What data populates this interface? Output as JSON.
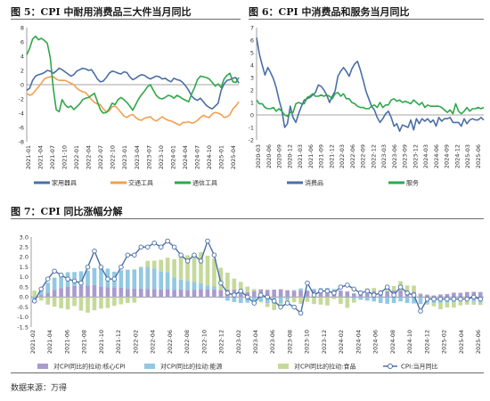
{
  "source": "数据来源：万得",
  "chart_data": [
    {
      "id": "fig5",
      "type": "line",
      "title": "图 5：CPI 中耐用消费品三大件当月同比",
      "ylim": [
        -8,
        8
      ],
      "yticks": [
        8,
        6,
        4,
        2,
        0,
        -2,
        -4,
        -6,
        -8
      ],
      "xlabels": [
        "2021-01",
        "2021-04",
        "2021-07",
        "2021-10",
        "2022-01",
        "2022-04",
        "2022-07",
        "2022-10",
        "2023-01",
        "2023-04",
        "2023-07",
        "2023-10",
        "2024-01",
        "2024-04",
        "2024-07",
        "2024-10",
        "2025-01",
        "2025-04"
      ],
      "grid": false,
      "legend_position": "bottom",
      "colors": {
        "家用器具": "#4a6fa5",
        "交通工具": "#f0a050",
        "通信工具": "#2ea84a"
      },
      "series": [
        {
          "name": "家用器具",
          "values": [
            -0.8,
            -0.5,
            0.6,
            1.2,
            1.4,
            1.5,
            1.7,
            2.0,
            1.9,
            1.6,
            1.9,
            2.3,
            2.1,
            1.8,
            1.5,
            1.2,
            1.4,
            1.9,
            2.1,
            2.3,
            2.2,
            2.0,
            2.1,
            1.5,
            0.8,
            0.4,
            0.5,
            1.0,
            1.6,
            1.9,
            1.8,
            1.6,
            1.5,
            1.8,
            1.7,
            1.1,
            0.7,
            0.9,
            1.2,
            1.4,
            1.3,
            1.0,
            0.8,
            1.0,
            1.2,
            1.1,
            0.8,
            0.9,
            0.6,
            0.4,
            0.9,
            0.7,
            0.6,
            0.3,
            -0.2,
            -0.8,
            -1.6,
            -2.0,
            -2.2,
            -1.9,
            -2.4,
            -2.9,
            -3.2,
            -3.4,
            -3.0,
            -2.6,
            -0.8,
            0.1,
            0.6,
            0.7,
            0.9,
            1.0,
            0.2
          ]
        },
        {
          "name": "交通工具",
          "values": [
            -1.2,
            -1.5,
            -1.3,
            -0.8,
            -0.3,
            0.2,
            0.8,
            1.0,
            1.1,
            1.1,
            0.8,
            0.6,
            0.6,
            0.6,
            0.4,
            0.2,
            0.0,
            -0.5,
            -0.8,
            -1.0,
            -1.1,
            -1.6,
            -2.1,
            -2.5,
            -2.7,
            -2.8,
            -3.4,
            -3.8,
            -3.7,
            -3.1,
            -3.0,
            -3.4,
            -3.9,
            -4.4,
            -4.6,
            -4.3,
            -4.2,
            -4.6,
            -4.9,
            -5.0,
            -4.7,
            -4.6,
            -4.5,
            -4.9,
            -5.1,
            -4.8,
            -4.5,
            -4.8,
            -5.0,
            -5.1,
            -5.3,
            -5.5,
            -5.7,
            -5.3,
            -5.3,
            -5.2,
            -5.4,
            -5.3,
            -5.0,
            -4.6,
            -4.3,
            -4.5,
            -4.6,
            -4.1,
            -3.9,
            -4.0,
            -4.2,
            -4.6,
            -4.5,
            -4.2,
            -3.4,
            -3.0,
            -2.4
          ]
        },
        {
          "name": "通信工具",
          "values": [
            4.2,
            5.1,
            6.4,
            6.8,
            6.3,
            6.5,
            6.2,
            5.8,
            3.8,
            -0.5,
            -3.5,
            -3.8,
            -2.1,
            -2.8,
            -3.2,
            -3.0,
            -3.5,
            -3.1,
            -2.7,
            -2.1,
            -1.9,
            -1.8,
            -1.5,
            -1.2,
            -2.4,
            -3.5,
            -4.0,
            -3.9,
            -3.4,
            -2.6,
            -2.8,
            -2.1,
            -1.8,
            -2.1,
            -2.5,
            -3.0,
            -3.6,
            -2.8,
            -2.0,
            -1.4,
            -0.9,
            -0.3,
            0.0,
            -0.8,
            -1.5,
            -1.9,
            -2.0,
            -1.8,
            -1.5,
            -1.6,
            -1.9,
            -1.5,
            -1.7,
            -2.0,
            -2.2,
            -2.4,
            -1.3,
            -0.4,
            0.7,
            1.2,
            1.1,
            1.0,
            0.8,
            0.3,
            -0.2,
            0.1,
            -0.4,
            0.8,
            1.3,
            1.6,
            0.4,
            0.3,
            1.0
          ]
        }
      ]
    },
    {
      "id": "fig6",
      "type": "line",
      "title": "图 6：CPI 中消费品和服务当月同比",
      "ylim": [
        -2,
        7
      ],
      "yticks": [
        7,
        6,
        5,
        4,
        3,
        2,
        1,
        0,
        -1,
        -2
      ],
      "xlabels": [
        "2020-03",
        "2020-06",
        "2020-09",
        "2020-12",
        "2021-03",
        "2021-06",
        "2021-09",
        "2021-12",
        "2022-03",
        "2022-06",
        "2022-09",
        "2022-12",
        "2023-03",
        "2023-06",
        "2023-09",
        "2023-12",
        "2024-03",
        "2024-06",
        "2024-09",
        "2024-12",
        "2025-03",
        "2025-06"
      ],
      "grid": false,
      "legend_position": "bottom",
      "colors": {
        "消费品": "#4a6fa5",
        "服务": "#2ea84a"
      },
      "series": [
        {
          "name": "消费品",
          "values": [
            6.2,
            4.9,
            4.0,
            3.2,
            3.8,
            3.4,
            2.9,
            2.2,
            1.2,
            0.4,
            -1.0,
            -0.7,
            0.7,
            -0.2,
            -0.6,
            0.1,
            0.7,
            1.2,
            1.3,
            1.4,
            1.6,
            1.8,
            2.4,
            2.3,
            2.0,
            1.6,
            1.0,
            1.5,
            1.9,
            3.1,
            3.5,
            3.8,
            3.5,
            3.1,
            3.7,
            4.1,
            4.3,
            3.6,
            2.8,
            1.9,
            1.3,
            0.7,
            0.4,
            -0.2,
            -0.6,
            -0.3,
            0.1,
            0.3,
            -0.2,
            -0.9,
            -0.7,
            -1.3,
            -0.8,
            -0.9,
            -1.0,
            -0.4,
            -1.2,
            -0.3,
            -0.7,
            -0.3,
            -0.5,
            -0.3,
            -0.6,
            -0.4,
            -0.9,
            -0.2,
            -0.5,
            -0.3,
            -0.3,
            -0.2,
            -0.6,
            -0.6,
            -0.6,
            -0.9,
            -0.3,
            -0.7,
            -0.4,
            -0.3,
            -0.4,
            -0.4,
            -0.2,
            -0.4
          ]
        },
        {
          "name": "服务",
          "values": [
            1.2,
            0.9,
            0.9,
            0.6,
            0.5,
            0.5,
            0.6,
            0.3,
            0.5,
            0.3,
            0.0,
            -0.1,
            0.2,
            0.2,
            0.9,
            1.0,
            0.9,
            0.9,
            1.4,
            1.5,
            1.7,
            1.5,
            1.5,
            1.6,
            1.5,
            1.6,
            1.5,
            1.3,
            1.7,
            1.8,
            1.5,
            1.7,
            1.3,
            1.3,
            1.0,
            0.9,
            0.7,
            0.6,
            0.6,
            0.5,
            0.5,
            0.7,
            0.8,
            0.6,
            1.0,
            0.6,
            0.8,
            0.8,
            1.2,
            1.3,
            1.1,
            1.2,
            1.0,
            1.1,
            1.0,
            0.9,
            1.2,
            1.0,
            0.8,
            1.0,
            0.6,
            0.8,
            0.7,
            0.7,
            0.7,
            0.7,
            0.6,
            0.4,
            0.2,
            0.4,
            0.1,
            0.9,
            0.3,
            0.1,
            0.3,
            0.6,
            0.3,
            0.5,
            0.5,
            0.6,
            0.5,
            0.6
          ]
        }
      ]
    },
    {
      "id": "fig7",
      "type": "bar",
      "title": "图 7：CPI 同比涨幅分解",
      "ylim": [
        -1.5,
        3.0
      ],
      "yticks": [
        3.0,
        2.5,
        2.0,
        1.5,
        1.0,
        0.5,
        0.0,
        -0.5,
        -1.0,
        -1.5
      ],
      "xlabels": [
        "2021-02",
        "2021-04",
        "2021-06",
        "2021-08",
        "2021-10",
        "2021-12",
        "2022-02",
        "2022-04",
        "2022-06",
        "2022-08",
        "2022-10",
        "2022-12",
        "2023-02",
        "2023-04",
        "2023-06",
        "2023-08",
        "2023-10",
        "2023-12",
        "2024-02",
        "2024-04",
        "2024-06",
        "2024-08",
        "2024-10",
        "2024-12",
        "2025-02",
        "2025-04",
        "2025-06"
      ],
      "grid": false,
      "legend_position": "bottom",
      "colors": {
        "对CPI同比的拉动:核心CPI": "#a99bcf",
        "对CPI同比的拉动:能源": "#92c8e3",
        "对CPI同比的拉动:食品": "#c5d99a",
        "CPI:当月同比": "#4a6fa5"
      },
      "series": [
        {
          "name": "对CPI同比的拉动:核心CPI",
          "values": [
            0.02,
            0.1,
            0.22,
            0.35,
            0.45,
            0.52,
            0.55,
            0.57,
            0.58,
            0.6,
            0.52,
            0.5,
            0.49,
            0.46,
            0.41,
            0.42,
            0.42,
            0.41,
            0.4,
            0.38,
            0.4,
            0.35,
            0.37,
            0.36,
            0.35,
            0.4,
            0.37,
            0.38,
            0.36,
            0.37,
            0.37,
            0.28,
            0.24,
            0.3,
            0.38,
            0.36,
            0.37,
            0.39,
            0.34,
            0.3,
            0.33,
            0.3,
            0.33,
            0.35,
            0.37,
            0.34,
            0.32,
            0.28,
            0.18,
            0.2,
            0.21,
            0.3,
            0.27,
            0.29,
            0.33,
            0.34,
            0.3,
            0.27,
            0.14,
            0.12,
            0.08,
            0.13,
            0.15,
            0.22,
            0.21,
            0.25,
            0.26,
            0.25
          ]
        },
        {
          "name": "对CPI同比的拉动:能源",
          "values": [
            -0.18,
            0.22,
            0.5,
            0.62,
            0.72,
            0.72,
            0.7,
            0.72,
            0.74,
            0.85,
            1.0,
            0.92,
            0.78,
            0.88,
            0.96,
            0.96,
            1.05,
            1.1,
            1.02,
            0.9,
            0.85,
            0.62,
            0.5,
            0.45,
            0.4,
            0.3,
            0.2,
            0.15,
            -0.05,
            -0.18,
            -0.25,
            -0.3,
            -0.28,
            -0.34,
            -0.22,
            -0.3,
            -0.35,
            -0.3,
            -0.12,
            0.05,
            0.1,
            0.04,
            0.08,
            0.1,
            0.09,
            0.06,
            0.02,
            -0.04,
            -0.1,
            -0.14,
            -0.18,
            -0.22,
            -0.3,
            -0.34,
            -0.3,
            -0.22,
            -0.3,
            -0.32,
            -0.35,
            -0.33,
            -0.31,
            -0.29,
            -0.27,
            -0.25,
            -0.22,
            -0.2,
            -0.24,
            -0.28
          ]
        },
        {
          "name": "对CPI同比的拉动:食品",
          "values": [
            0.3,
            -0.18,
            -0.38,
            -0.48,
            -0.56,
            -0.62,
            -0.45,
            -0.68,
            -0.78,
            -0.66,
            -0.58,
            -0.55,
            -0.44,
            -0.36,
            -0.3,
            -0.28,
            0.05,
            0.3,
            0.4,
            0.58,
            0.72,
            0.92,
            1.2,
            1.28,
            1.4,
            1.55,
            1.5,
            1.4,
            1.1,
            0.85,
            0.55,
            0.48,
            0.28,
            0.1,
            -0.05,
            -0.2,
            -0.3,
            -0.22,
            -0.18,
            -0.26,
            -0.34,
            -0.24,
            -0.35,
            -0.38,
            -0.42,
            -0.1,
            -0.34,
            -0.5,
            -0.18,
            0.1,
            0.22,
            0.15,
            0.08,
            0.18,
            0.22,
            0.45,
            0.28,
            0.3,
            0.05,
            -0.05,
            -0.15,
            -0.32,
            -0.25,
            -0.28,
            -0.2,
            -0.18,
            -0.15,
            -0.12
          ]
        },
        {
          "name": "CPI:当月同比",
          "values": [
            -0.2,
            0.4,
            0.9,
            1.3,
            1.1,
            0.9,
            0.8,
            0.7,
            1.5,
            2.3,
            1.5,
            0.9,
            0.9,
            1.5,
            2.1,
            2.1,
            2.5,
            2.5,
            2.7,
            2.5,
            2.8,
            2.5,
            2.1,
            1.8,
            2.1,
            1.8,
            2.8,
            2.1,
            0.7,
            0.2,
            0.1,
            0.3,
            0.0,
            -0.3,
            0.1,
            0.0,
            -0.2,
            -0.5,
            -0.3,
            -0.5,
            -0.8,
            0.7,
            0.1,
            0.3,
            0.3,
            0.2,
            0.5,
            0.6,
            0.4,
            0.2,
            0.3,
            0.1,
            0.2,
            0.5,
            0.1,
            0.5,
            0.2,
            0.1,
            -0.7,
            -0.1,
            -0.1,
            -0.1,
            -0.1,
            -0.1,
            -0.1,
            -0.1,
            0.0,
            -0.1
          ]
        }
      ]
    }
  ]
}
